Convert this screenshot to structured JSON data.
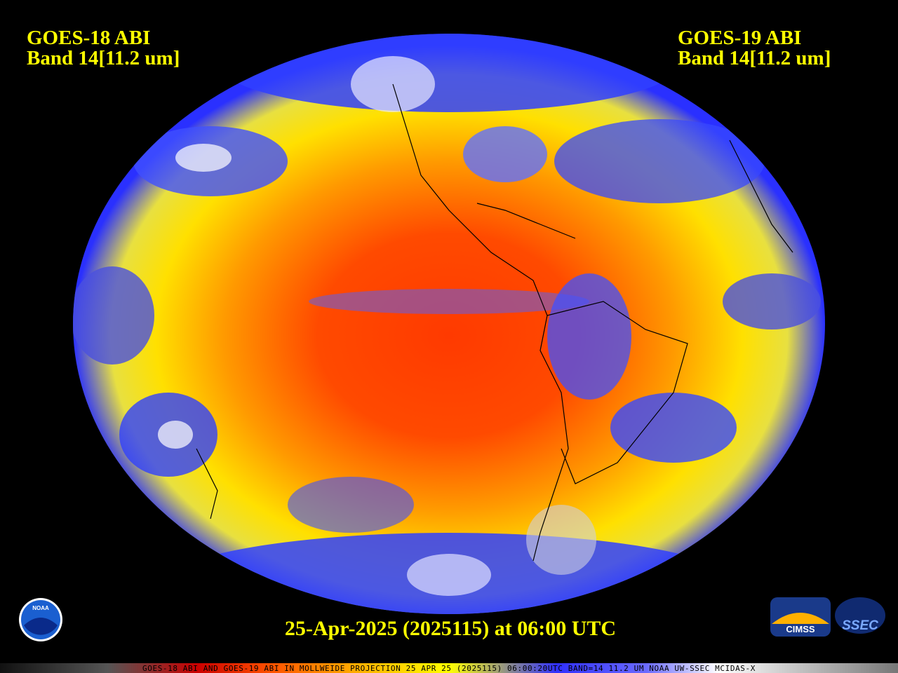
{
  "header": {
    "left": {
      "title": "GOES-18 ABI",
      "band": "Band 14[11.2 um]"
    },
    "right": {
      "title": "GOES-19 ABI",
      "band": "Band 14[11.2 um]"
    }
  },
  "caption": "25-Apr-2025 (2025115) at 06:00 UTC",
  "footer": "GOES-18 ABI AND GOES-19 ABI IN MOLLWEIDE PROJECTION 25 APR 25 (2025115) 06:00:20UTC BAND=14 11.2 UM NOAA UW-SSEC MCIDAS-X",
  "logos": {
    "noaa": "NOAA",
    "cimss": "CIMSS",
    "ssec": "SSEC"
  }
}
